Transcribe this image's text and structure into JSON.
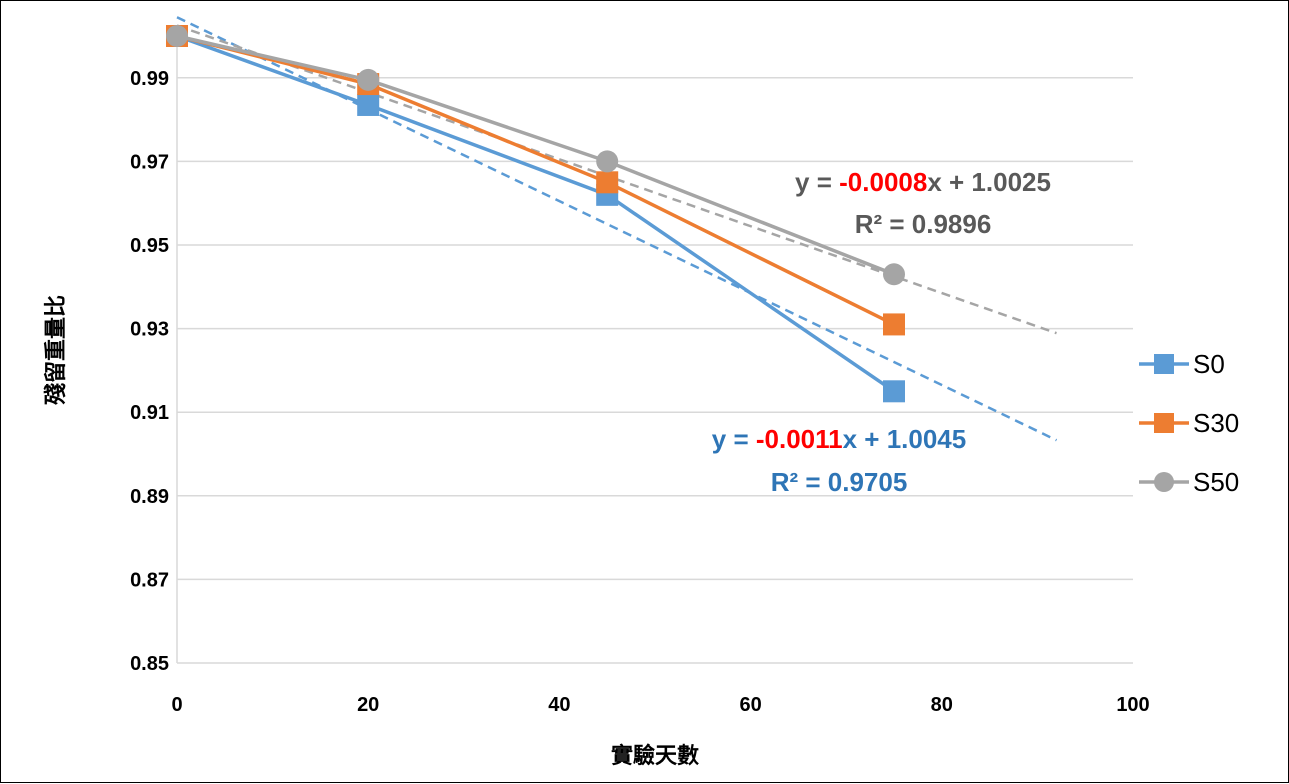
{
  "chart_data": {
    "type": "line",
    "xlabel": "實驗天數",
    "ylabel": "殘留重量比",
    "xlim": [
      0,
      100
    ],
    "ylim": [
      0.85,
      1.0
    ],
    "x_ticks": [
      "0",
      "20",
      "40",
      "60",
      "80",
      "100"
    ],
    "y_ticks": [
      "0.85",
      "0.87",
      "0.89",
      "0.91",
      "0.93",
      "0.95",
      "0.97",
      "0.99"
    ],
    "grid": "horizontal",
    "legend_position": "right",
    "series": [
      {
        "name": "S0",
        "color": "#5b9bd5",
        "marker": "square",
        "x": [
          0,
          20,
          45,
          75
        ],
        "y": [
          1.0,
          0.9835,
          0.962,
          0.915
        ]
      },
      {
        "name": "S30",
        "color": "#ed7d31",
        "marker": "square",
        "x": [
          0,
          20,
          45,
          75
        ],
        "y": [
          1.0,
          0.9885,
          0.965,
          0.931
        ]
      },
      {
        "name": "S50",
        "color": "#a5a5a5",
        "marker": "circle",
        "x": [
          0,
          20,
          45,
          75
        ],
        "y": [
          1.0,
          0.9895,
          0.97,
          0.943
        ]
      }
    ],
    "trendlines": [
      {
        "series": "S0",
        "color": "#5b9bd5",
        "slope": -0.0011,
        "intercept": 1.0045,
        "x_range": [
          0,
          92
        ],
        "equation": {
          "prefix": "y = ",
          "coef": "-0.0011",
          "suffix": "x + 1.0045"
        },
        "r2": "R² = 0.9705"
      },
      {
        "series": "S50",
        "color": "#a5a5a5",
        "slope": -0.0008,
        "intercept": 1.0025,
        "x_range": [
          0,
          92
        ],
        "equation": {
          "prefix": "y = ",
          "coef": "-0.0008",
          "suffix": "x + 1.0025"
        },
        "r2": "R² = 0.9896"
      }
    ],
    "label_colors": {
      "s0_equation": "#2e75b6",
      "s50_equation": "#595959",
      "coefficient": "#ff0000"
    }
  }
}
